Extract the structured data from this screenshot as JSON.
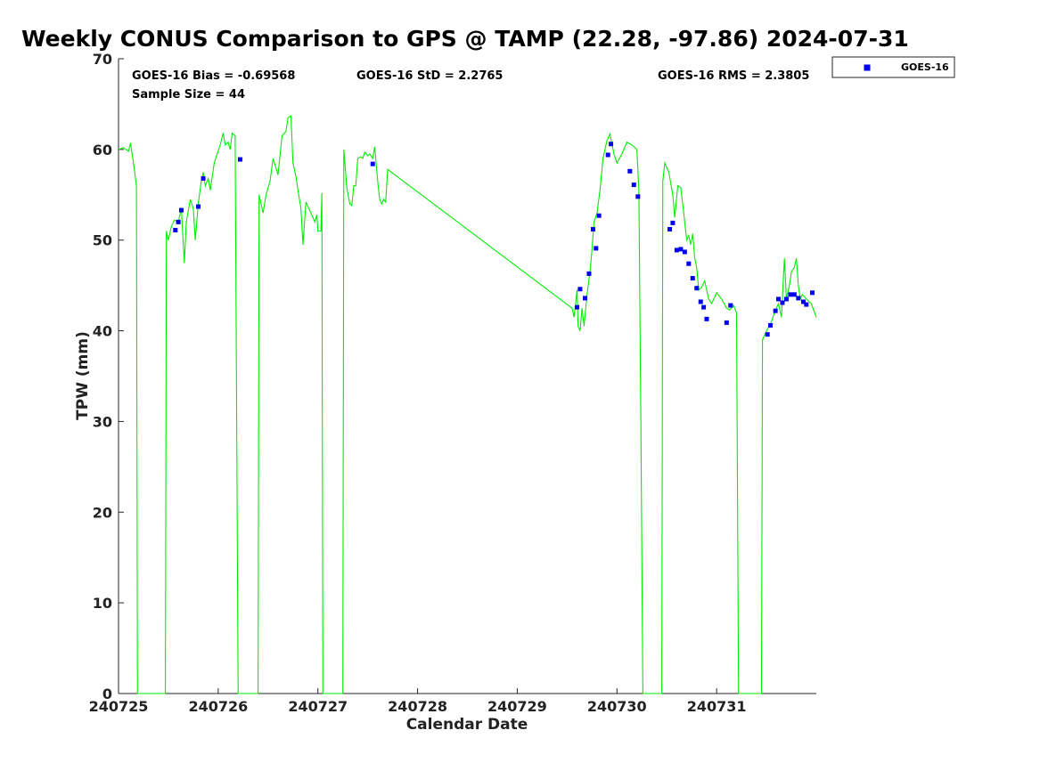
{
  "chart_data": {
    "type": "line",
    "title": "Weekly CONUS Comparison to GPS @ TAMP (22.28, -97.86) 2024-07-31",
    "xlabel": "Calendar Date",
    "ylabel": "TPW (mm)",
    "xlim": [
      "240725",
      "240731 22:00"
    ],
    "ylim": [
      0,
      70
    ],
    "x_ticks": [
      "240725",
      "240726",
      "240727",
      "240728",
      "240729",
      "240730",
      "240731"
    ],
    "y_ticks": [
      "0",
      "10",
      "20",
      "30",
      "40",
      "50",
      "60",
      "70"
    ],
    "grid": false,
    "legend_position": "top-right",
    "annotations": {
      "bias": "GOES-16 Bias = -0.69568",
      "std": "GOES-16 StD = 2.2765",
      "rms": "GOES-16 RMS = 2.3805",
      "sample_size": "Sample Size = 44"
    },
    "colors": {
      "gps_line": "#00ee00",
      "goes_points": "#0000ee"
    },
    "series": [
      {
        "kind": "line",
        "values_units": "mm",
        "points": [
          [
            0.0,
            60
          ],
          [
            0.05,
            60.2
          ],
          [
            0.1,
            59.8
          ],
          [
            0.12,
            60.7
          ],
          [
            0.15,
            58.5
          ],
          [
            0.18,
            56
          ],
          [
            0.19,
            0
          ],
          [
            0.47,
            0
          ],
          [
            0.48,
            51
          ],
          [
            0.5,
            50
          ],
          [
            0.53,
            51.5
          ],
          [
            0.56,
            52.2
          ],
          [
            0.6,
            52
          ],
          [
            0.63,
            53.5
          ],
          [
            0.66,
            47.5
          ],
          [
            0.68,
            52
          ],
          [
            0.72,
            54.5
          ],
          [
            0.75,
            53.5
          ],
          [
            0.77,
            50
          ],
          [
            0.8,
            54
          ],
          [
            0.83,
            56.5
          ],
          [
            0.85,
            57.5
          ],
          [
            0.87,
            56
          ],
          [
            0.9,
            56.8
          ],
          [
            0.92,
            55.5
          ],
          [
            0.96,
            58.5
          ],
          [
            1.02,
            60.5
          ],
          [
            1.05,
            61.8
          ],
          [
            1.07,
            60.5
          ],
          [
            1.1,
            60.8
          ],
          [
            1.12,
            60
          ],
          [
            1.14,
            61.8
          ],
          [
            1.17,
            61.5
          ],
          [
            1.2,
            0
          ],
          [
            1.4,
            0
          ],
          [
            1.41,
            55
          ],
          [
            1.45,
            53
          ],
          [
            1.48,
            55
          ],
          [
            1.52,
            56.5
          ],
          [
            1.55,
            59
          ],
          [
            1.6,
            57.2
          ],
          [
            1.64,
            61.5
          ],
          [
            1.68,
            62
          ],
          [
            1.7,
            63.5
          ],
          [
            1.73,
            63.7
          ],
          [
            1.75,
            58.5
          ],
          [
            1.78,
            57
          ],
          [
            1.8,
            55.5
          ],
          [
            1.83,
            53.5
          ],
          [
            1.85,
            49.5
          ],
          [
            1.88,
            54.2
          ],
          [
            1.93,
            53
          ],
          [
            1.97,
            52
          ],
          [
            1.99,
            52.8
          ],
          [
            2.0,
            51
          ],
          [
            2.03,
            51
          ],
          [
            2.04,
            55.2
          ],
          [
            2.05,
            0
          ],
          [
            2.25,
            0
          ],
          [
            2.26,
            60
          ],
          [
            2.29,
            55.8
          ],
          [
            2.32,
            54
          ],
          [
            2.34,
            53.8
          ],
          [
            2.36,
            56
          ],
          [
            2.38,
            56
          ],
          [
            2.4,
            59
          ],
          [
            2.43,
            59.2
          ],
          [
            2.45,
            59
          ],
          [
            2.47,
            59.7
          ],
          [
            2.5,
            59.3
          ],
          [
            2.52,
            59.5
          ],
          [
            2.55,
            59
          ],
          [
            2.57,
            60.3
          ],
          [
            2.6,
            56.5
          ],
          [
            2.62,
            54.5
          ],
          [
            2.64,
            54
          ],
          [
            2.66,
            54.5
          ],
          [
            2.68,
            54.2
          ],
          [
            2.7,
            57.8
          ],
          [
            4.55,
            42.5
          ],
          [
            4.57,
            41.5
          ],
          [
            4.58,
            42.5
          ],
          [
            4.6,
            44.5
          ],
          [
            4.61,
            40.5
          ],
          [
            4.63,
            40
          ],
          [
            4.65,
            42.5
          ],
          [
            4.67,
            40.5
          ],
          [
            4.7,
            44
          ],
          [
            4.73,
            46.5
          ],
          [
            4.75,
            49
          ],
          [
            4.77,
            52
          ],
          [
            4.8,
            53
          ],
          [
            4.83,
            55.5
          ],
          [
            4.86,
            59
          ],
          [
            4.9,
            61
          ],
          [
            4.93,
            61.7
          ],
          [
            4.97,
            59.5
          ],
          [
            5.0,
            58.5
          ],
          [
            5.05,
            59.5
          ],
          [
            5.1,
            60.8
          ],
          [
            5.15,
            60.5
          ],
          [
            5.2,
            60
          ],
          [
            5.22,
            55.5
          ],
          [
            5.24,
            30
          ],
          [
            5.26,
            0
          ],
          [
            5.45,
            0
          ],
          [
            5.46,
            56.5
          ],
          [
            5.48,
            58.5
          ],
          [
            5.52,
            57.5
          ],
          [
            5.56,
            55
          ],
          [
            5.58,
            52.5
          ],
          [
            5.61,
            56
          ],
          [
            5.64,
            55.8
          ],
          [
            5.67,
            53
          ],
          [
            5.7,
            50
          ],
          [
            5.72,
            50.5
          ],
          [
            5.74,
            49.5
          ],
          [
            5.76,
            50.7
          ],
          [
            5.78,
            48
          ],
          [
            5.8,
            47
          ],
          [
            5.82,
            44.5
          ],
          [
            5.85,
            44.8
          ],
          [
            5.88,
            45.5
          ],
          [
            5.92,
            43.5
          ],
          [
            5.95,
            43
          ],
          [
            6.0,
            44.2
          ],
          [
            6.05,
            43.5
          ],
          [
            6.1,
            42.5
          ],
          [
            6.13,
            42.3
          ],
          [
            6.17,
            42.8
          ],
          [
            6.2,
            42
          ],
          [
            6.22,
            0
          ],
          [
            6.45,
            0
          ],
          [
            6.46,
            39
          ],
          [
            6.5,
            40
          ],
          [
            6.55,
            41
          ],
          [
            6.58,
            42
          ],
          [
            6.62,
            43
          ],
          [
            6.65,
            41.5
          ],
          [
            6.68,
            48
          ],
          [
            6.7,
            43.5
          ],
          [
            6.73,
            45
          ],
          [
            6.75,
            46.5
          ],
          [
            6.78,
            47
          ],
          [
            6.8,
            48
          ],
          [
            6.82,
            45
          ],
          [
            6.84,
            43.5
          ],
          [
            6.86,
            44
          ],
          [
            6.9,
            43.5
          ],
          [
            6.95,
            43
          ],
          [
            7.0,
            41.5
          ]
        ]
      },
      {
        "name": "GOES-16",
        "kind": "scatter",
        "values_units": "mm",
        "points": [
          [
            0.57,
            51.1
          ],
          [
            0.6,
            52
          ],
          [
            0.63,
            53.3
          ],
          [
            0.8,
            53.7
          ],
          [
            0.85,
            56.8
          ],
          [
            1.22,
            58.9
          ],
          [
            2.55,
            58.4
          ],
          [
            4.6,
            42.6
          ],
          [
            4.63,
            44.6
          ],
          [
            4.68,
            43.6
          ],
          [
            4.72,
            46.3
          ],
          [
            4.76,
            51.2
          ],
          [
            4.79,
            49.1
          ],
          [
            4.82,
            52.7
          ],
          [
            4.91,
            59.4
          ],
          [
            4.94,
            60.6
          ],
          [
            5.13,
            57.6
          ],
          [
            5.17,
            56.1
          ],
          [
            5.21,
            54.8
          ],
          [
            5.53,
            51.2
          ],
          [
            5.56,
            51.9
          ],
          [
            5.6,
            48.9
          ],
          [
            5.64,
            49
          ],
          [
            5.68,
            48.7
          ],
          [
            5.72,
            47.4
          ],
          [
            5.76,
            45.8
          ],
          [
            5.8,
            44.7
          ],
          [
            5.84,
            43.2
          ],
          [
            5.87,
            42.6
          ],
          [
            5.9,
            41.3
          ],
          [
            6.1,
            40.9
          ],
          [
            6.14,
            42.8
          ],
          [
            6.51,
            39.6
          ],
          [
            6.54,
            40.6
          ],
          [
            6.59,
            42.2
          ],
          [
            6.62,
            43.5
          ],
          [
            6.66,
            43.1
          ],
          [
            6.7,
            43.5
          ],
          [
            6.74,
            44
          ],
          [
            6.78,
            44
          ],
          [
            6.82,
            43.6
          ],
          [
            6.87,
            43.2
          ],
          [
            6.9,
            42.9
          ],
          [
            6.96,
            44.2
          ]
        ]
      }
    ]
  }
}
